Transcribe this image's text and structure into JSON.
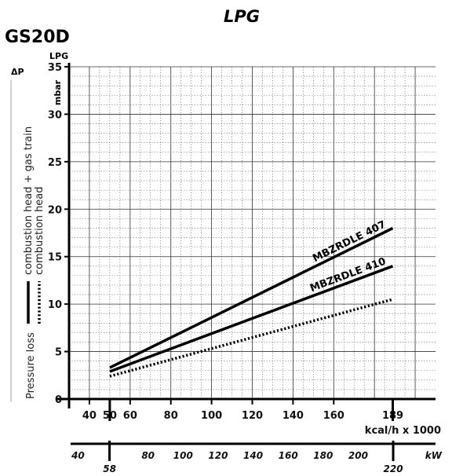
{
  "chart_data": {
    "type": "line",
    "title": "LPG",
    "model": "GS20D",
    "y_top_label": "LPG",
    "y_delta_label": "ΔP",
    "y_unit": "mbar",
    "ylim": [
      0,
      35
    ],
    "y_ticks": [
      0,
      5,
      10,
      15,
      20,
      25,
      30,
      35
    ],
    "x_unit": "kcal/h x 1000",
    "xlim": [
      30,
      210
    ],
    "x_ticks": [
      40,
      50,
      60,
      80,
      100,
      120,
      140,
      160,
      189
    ],
    "kw_unit": "kW",
    "kw_ticks": [
      40,
      58,
      80,
      100,
      120,
      140,
      160,
      180,
      200,
      220
    ],
    "kw_highlight": [
      58,
      220
    ],
    "grid": true,
    "series": [
      {
        "name": "MBZRDLE 407",
        "style": "solid",
        "x": [
          50,
          189
        ],
        "y": [
          3.3,
          18.0
        ]
      },
      {
        "name": "MBZRDLE 410",
        "style": "solid",
        "x": [
          50,
          189
        ],
        "y": [
          2.9,
          14.0
        ]
      },
      {
        "style": "dotted",
        "x": [
          50,
          189
        ],
        "y": [
          2.4,
          10.5
        ]
      }
    ],
    "legend": {
      "title": "Pressure loss",
      "items": [
        {
          "style": "solid",
          "label": "combustion head + gas train"
        },
        {
          "style": "dotted",
          "label": "combustion head"
        }
      ]
    }
  }
}
